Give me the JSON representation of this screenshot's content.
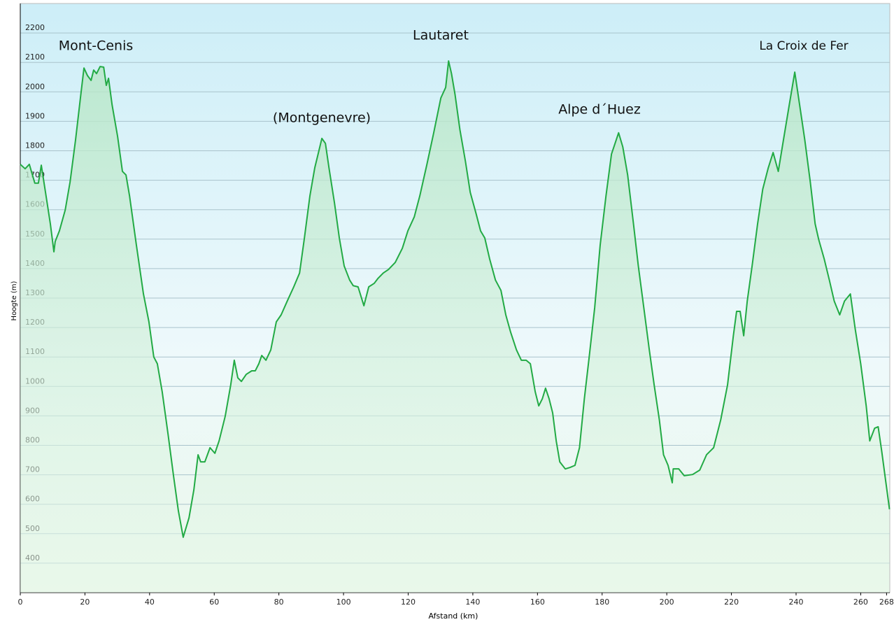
{
  "chart_data": {
    "type": "area",
    "xlabel": "Afstand  (km)",
    "ylabel": "Hoogte (m)",
    "annotations": [
      "Mont-Cenis",
      "(Montgenevre)",
      "Lautaret",
      "Alpe d´Huez",
      "La Croix de Fer"
    ],
    "color": "#22aa44",
    "grid": true,
    "xlim": [
      0,
      269
    ],
    "ylim": [
      300,
      2300
    ],
    "xticks": [
      0,
      20,
      40,
      60,
      80,
      100,
      120,
      140,
      160,
      180,
      200,
      220,
      240,
      260,
      268
    ],
    "yticks": [
      400,
      500,
      600,
      700,
      800,
      900,
      1000,
      1100,
      1200,
      1300,
      1400,
      1500,
      1600,
      1700,
      1800,
      1900,
      2000,
      2100,
      2200
    ],
    "x": [
      0,
      1.5,
      2.8,
      4.5,
      5.6,
      6.5,
      7.8,
      9.3,
      10.4,
      10.8,
      12.1,
      13.9,
      15.4,
      17.1,
      18.6,
      19.7,
      20.8,
      21.9,
      22.7,
      23.6,
      24.7,
      25.8,
      26.6,
      27.3,
      28.4,
      30.1,
      31.6,
      32.7,
      33.8,
      35.9,
      38.1,
      39.8,
      41.3,
      42.4,
      43.9,
      45.7,
      47.4,
      48.9,
      50.4,
      52.2,
      53.7,
      55.0,
      55.8,
      57.1,
      58.7,
      60.2,
      61.5,
      63.4,
      65.1,
      66.2,
      67.3,
      68.4,
      69.9,
      71.6,
      72.7,
      73.8,
      74.7,
      76.0,
      77.5,
      79.2,
      80.7,
      82.6,
      84.6,
      86.4,
      87.9,
      89.6,
      91.1,
      92.4,
      93.3,
      94.4,
      95.5,
      97.2,
      98.7,
      100.2,
      101.9,
      103.0,
      104.5,
      106.3,
      107.8,
      109.5,
      110.6,
      112.3,
      113.9,
      116.0,
      118.2,
      119.9,
      121.9,
      123.6,
      125.8,
      127.9,
      130.1,
      131.6,
      132.5,
      133.4,
      134.5,
      136.0,
      137.7,
      139.2,
      141.0,
      142.4,
      143.7,
      145.2,
      147.0,
      148.7,
      150.2,
      151.7,
      153.5,
      155.0,
      156.5,
      157.8,
      159.3,
      160.4,
      161.5,
      162.5,
      163.6,
      164.7,
      165.8,
      166.9,
      168.6,
      170.1,
      171.6,
      173.0,
      174.5,
      176.0,
      177.7,
      179.4,
      181.2,
      182.9,
      185.1,
      186.4,
      187.9,
      189.7,
      191.2,
      192.9,
      194.6,
      196.1,
      197.7,
      199.0,
      200.4,
      201.7,
      202.0,
      203.7,
      205.4,
      208.0,
      210.2,
      212.3,
      214.5,
      216.7,
      218.8,
      220.6,
      221.6,
      222.7,
      223.8,
      224.9,
      226.4,
      228.1,
      229.7,
      231.4,
      232.9,
      234.5,
      236.1,
      237.9,
      239.6,
      241.1,
      242.7,
      244.4,
      245.9,
      247.0,
      248.7,
      250.3,
      251.8,
      253.5,
      255.0,
      256.8,
      258.3,
      260.0,
      261.7,
      262.8,
      264.3,
      265.4,
      266.5,
      267.8,
      268.9
    ],
    "values": [
      1754,
      1739,
      1754,
      1690,
      1690,
      1751,
      1659,
      1552,
      1457,
      1492,
      1528,
      1599,
      1694,
      1837,
      1979,
      2081,
      2055,
      2039,
      2074,
      2062,
      2086,
      2084,
      2022,
      2046,
      1956,
      1849,
      1730,
      1718,
      1647,
      1481,
      1314,
      1219,
      1100,
      1077,
      982,
      839,
      697,
      578,
      488,
      554,
      649,
      768,
      744,
      744,
      792,
      773,
      815,
      899,
      1005,
      1089,
      1029,
      1017,
      1041,
      1053,
      1053,
      1077,
      1105,
      1089,
      1124,
      1219,
      1243,
      1290,
      1338,
      1385,
      1504,
      1647,
      1742,
      1801,
      1842,
      1825,
      1742,
      1623,
      1504,
      1409,
      1361,
      1342,
      1338,
      1274,
      1338,
      1350,
      1366,
      1385,
      1397,
      1421,
      1469,
      1528,
      1576,
      1647,
      1754,
      1861,
      1979,
      2015,
      2105,
      2062,
      1991,
      1872,
      1765,
      1659,
      1587,
      1528,
      1504,
      1433,
      1361,
      1326,
      1243,
      1184,
      1124,
      1089,
      1089,
      1077,
      982,
      934,
      958,
      994,
      958,
      910,
      815,
      744,
      720,
      725,
      732,
      792,
      958,
      1100,
      1267,
      1480,
      1647,
      1789,
      1861,
      1813,
      1718,
      1552,
      1409,
      1267,
      1124,
      1005,
      887,
      768,
      732,
      673,
      720,
      720,
      697,
      701,
      716,
      768,
      792,
      887,
      1005,
      1172,
      1255,
      1255,
      1172,
      1290,
      1409,
      1552,
      1670,
      1742,
      1794,
      1730,
      1837,
      1956,
      2067,
      1956,
      1837,
      1694,
      1552,
      1499,
      1433,
      1361,
      1290,
      1243,
      1290,
      1314,
      1195,
      1077,
      934,
      815,
      858,
      863,
      780,
      673,
      583
    ]
  }
}
